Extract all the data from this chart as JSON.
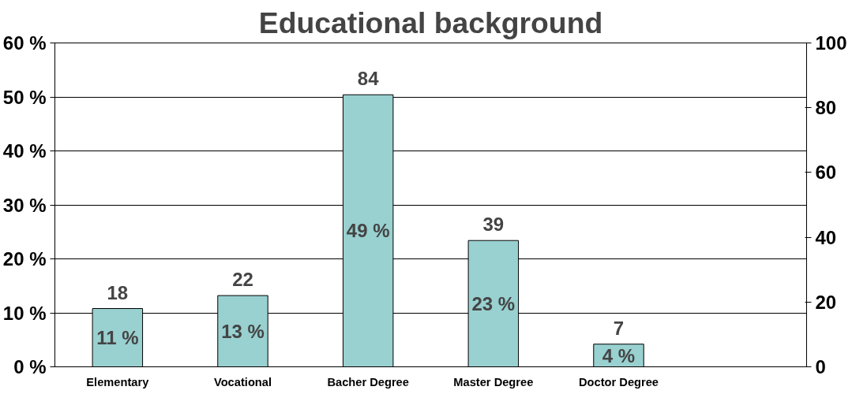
{
  "chart_data": {
    "type": "bar",
    "title": "Educational background",
    "categories": [
      "Elementary",
      "Vocational",
      "Bacher Degree",
      "Master Degree",
      "Doctor Degree",
      null
    ],
    "series": [
      {
        "color": "#99d0d0",
        "axis": "y2",
        "values": [
          18,
          22,
          84,
          39,
          7,
          null
        ]
      }
    ],
    "data_labels": true,
    "annotations": [
      "11 %",
      "13 %",
      "49 %",
      "23 %",
      "4 %"
    ],
    "ylim": [
      0,
      60
    ],
    "yticks": [
      {
        "value": 0,
        "label": "0 %"
      },
      {
        "value": 10,
        "label": "10 %"
      },
      {
        "value": 20,
        "label": "20 %"
      },
      {
        "value": 30,
        "label": "30 %"
      },
      {
        "value": 40,
        "label": "40 %"
      },
      {
        "value": 50,
        "label": "50 %"
      },
      {
        "value": 60,
        "label": "60 %"
      }
    ],
    "y2lim": [
      0,
      100
    ],
    "y2ticks": [
      0,
      20,
      40,
      60,
      80,
      100
    ],
    "grid": "y"
  }
}
